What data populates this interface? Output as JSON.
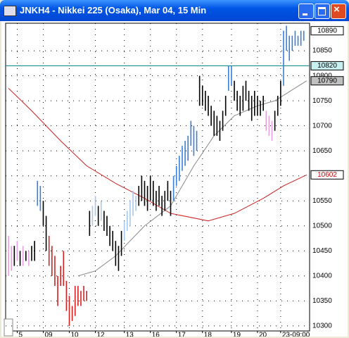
{
  "window_title": "JNKH4 - Nikkei 225 (Osaka), Mar 04, 15 Min",
  "chart_data": {
    "type": "range-bar",
    "xlim": [
      -1,
      104
    ],
    "xticks": [
      {
        "value": 3,
        "label": "5"
      },
      {
        "value": 12,
        "label": "09"
      },
      {
        "value": 21,
        "label": "10"
      },
      {
        "value": 30,
        "label": "12"
      },
      {
        "value": 40,
        "label": "13"
      },
      {
        "value": 49,
        "label": "16"
      },
      {
        "value": 58,
        "label": "17"
      },
      {
        "value": 67,
        "label": "18"
      },
      {
        "value": 77,
        "label": "19"
      },
      {
        "value": 86,
        "label": "20"
      },
      {
        "value": 94,
        "label": "23-09:00"
      }
    ],
    "ylim": [
      10290,
      10905
    ],
    "yticks": [
      10300,
      10350,
      10400,
      10450,
      10500,
      10550,
      10600,
      10650,
      10700,
      10750,
      10800,
      10850
    ],
    "grid": true,
    "bars": {
      "x": [
        0,
        1,
        2,
        3,
        4,
        5,
        6,
        7,
        8,
        9,
        10,
        11,
        12,
        13,
        14,
        15,
        16,
        17,
        18,
        19,
        20,
        21,
        22,
        23,
        24,
        25,
        26,
        27,
        28,
        29,
        30,
        31,
        32,
        33,
        34,
        35,
        36,
        37,
        38,
        39,
        40,
        41,
        42,
        43,
        44,
        45,
        46,
        47,
        48,
        49,
        50,
        51,
        52,
        53,
        54,
        55,
        56,
        57,
        58,
        59,
        60,
        61,
        62,
        63,
        64,
        65,
        66,
        67,
        68,
        69,
        70,
        71,
        72,
        73,
        74,
        75,
        76,
        77,
        78,
        79,
        80,
        81,
        82,
        83,
        84,
        85,
        86,
        87,
        88,
        89,
        90,
        91,
        92,
        93,
        94,
        95,
        96,
        97,
        98,
        99,
        100,
        101,
        102
      ],
      "high": [
        10480,
        10460,
        10460,
        10470,
        10450,
        10460,
        10450,
        10450,
        10460,
        10470,
        10590,
        10580,
        10550,
        10520,
        10480,
        10460,
        10440,
        10400,
        10420,
        10450,
        10390,
        10360,
        10340,
        10380,
        10380,
        10370,
        10380,
        10370,
        10530,
        10540,
        10560,
        10540,
        10550,
        10530,
        10520,
        10500,
        10490,
        10470,
        10460,
        10490,
        10510,
        10530,
        10550,
        10570,
        10560,
        10580,
        10600,
        10590,
        10580,
        10600,
        10590,
        10570,
        10580,
        10560,
        10570,
        10590,
        10570,
        10600,
        10620,
        10640,
        10660,
        10670,
        10680,
        10710,
        10700,
        10690,
        10800,
        10780,
        10770,
        10760,
        10740,
        10730,
        10720,
        10710,
        10730,
        10760,
        10820,
        10820,
        10790,
        10770,
        10760,
        10780,
        10790,
        10770,
        10760,
        10770,
        10760,
        10750,
        10760,
        10730,
        10720,
        10710,
        10730,
        10760,
        10790,
        10890,
        10900,
        10880,
        10880,
        10890,
        10880,
        10890,
        10890
      ],
      "low": [
        10400,
        10410,
        10420,
        10430,
        10420,
        10420,
        10430,
        10420,
        10430,
        10430,
        10540,
        10530,
        10500,
        10450,
        10420,
        10400,
        10380,
        10340,
        10380,
        10380,
        10330,
        10300,
        10310,
        10320,
        10340,
        10340,
        10350,
        10350,
        10480,
        10500,
        10520,
        10500,
        10510,
        10490,
        10480,
        10460,
        10450,
        10420,
        10410,
        10440,
        10470,
        10490,
        10500,
        10520,
        10530,
        10540,
        10550,
        10540,
        10530,
        10550,
        10540,
        10530,
        10540,
        10520,
        10530,
        10550,
        10520,
        10550,
        10580,
        10590,
        10610,
        10620,
        10630,
        10660,
        10640,
        10650,
        10740,
        10740,
        10730,
        10720,
        10700,
        10680,
        10680,
        10670,
        10690,
        10720,
        10770,
        10780,
        10750,
        10730,
        10720,
        10730,
        10750,
        10730,
        10710,
        10720,
        10720,
        10720,
        10730,
        10690,
        10680,
        10670,
        10690,
        10720,
        10740,
        10780,
        10850,
        10830,
        10850,
        10860,
        10860,
        10860,
        10870
      ],
      "colors": [
        "#e6a0e0",
        "#e6a0e0",
        "#000000",
        "#e6a0e0",
        "#000000",
        "#e6a0e0",
        "#000000",
        "#e6a0e0",
        "#000000",
        "#000000",
        "#3a7fd5",
        "#3a7fd5",
        "#000000",
        "#000000",
        "#d32020",
        "#d32020",
        "#d32020",
        "#d32020",
        "#d32020",
        "#d32020",
        "#d32020",
        "#d32020",
        "#d32020",
        "#d32020",
        "#d32020",
        "#d32020",
        "#d32020",
        "#d32020",
        "#000000",
        "#a8c8ec",
        "#a8c8ec",
        "#000000",
        "#a8c8ec",
        "#000000",
        "#000000",
        "#000000",
        "#000000",
        "#000000",
        "#000000",
        "#000000",
        "#a8c8ec",
        "#a8c8ec",
        "#a8c8ec",
        "#a8c8ec",
        "#a8c8ec",
        "#000000",
        "#000000",
        "#000000",
        "#000000",
        "#000000",
        "#000000",
        "#000000",
        "#000000",
        "#000000",
        "#000000",
        "#000000",
        "#000000",
        "#3a7fd5",
        "#3a7fd5",
        "#3a7fd5",
        "#3a7fd5",
        "#3a7fd5",
        "#3a7fd5",
        "#3a7fd5",
        "#3a7fd5",
        "#3a7fd5",
        "#000000",
        "#000000",
        "#000000",
        "#000000",
        "#000000",
        "#000000",
        "#000000",
        "#000000",
        "#000000",
        "#000000",
        "#3a7fd5",
        "#3a7fd5",
        "#000000",
        "#000000",
        "#000000",
        "#000000",
        "#000000",
        "#000000",
        "#000000",
        "#000000",
        "#000000",
        "#000000",
        "#000000",
        "#e6a0e0",
        "#e6a0e0",
        "#e6a0e0",
        "#000000",
        "#000000",
        "#000000",
        "#3a7fd5",
        "#3a7fd5",
        "#3a7fd5",
        "#3a7fd5",
        "#3a7fd5",
        "#3a7fd5",
        "#3a7fd5",
        "#3a7fd5"
      ]
    },
    "lines": [
      {
        "color": "#888888",
        "x": [
          24,
          30,
          37,
          47,
          56,
          64,
          71,
          78,
          86,
          92,
          103
        ],
        "values": [
          10400,
          10410,
          10440,
          10500,
          10540,
          10620,
          10680,
          10720,
          10740,
          10750,
          10790
        ]
      },
      {
        "color": "#cc2222",
        "x": [
          0,
          8,
          18,
          27,
          37,
          47,
          56,
          69,
          78,
          88,
          95,
          103
        ],
        "values": [
          10775,
          10730,
          10670,
          10620,
          10585,
          10555,
          10525,
          10510,
          10525,
          10555,
          10580,
          10602
        ]
      }
    ],
    "hline": {
      "value": 10820,
      "color": "#008080"
    },
    "markers": {
      "values": [
        10890,
        10820,
        10790,
        10602
      ],
      "colors": [
        "#ffffff",
        "#c8f0f0",
        "#c0c0c0",
        "#ffffff"
      ],
      "text_colors": [
        "#000000",
        "#000000",
        "#000000",
        "#cc0000"
      ]
    }
  }
}
